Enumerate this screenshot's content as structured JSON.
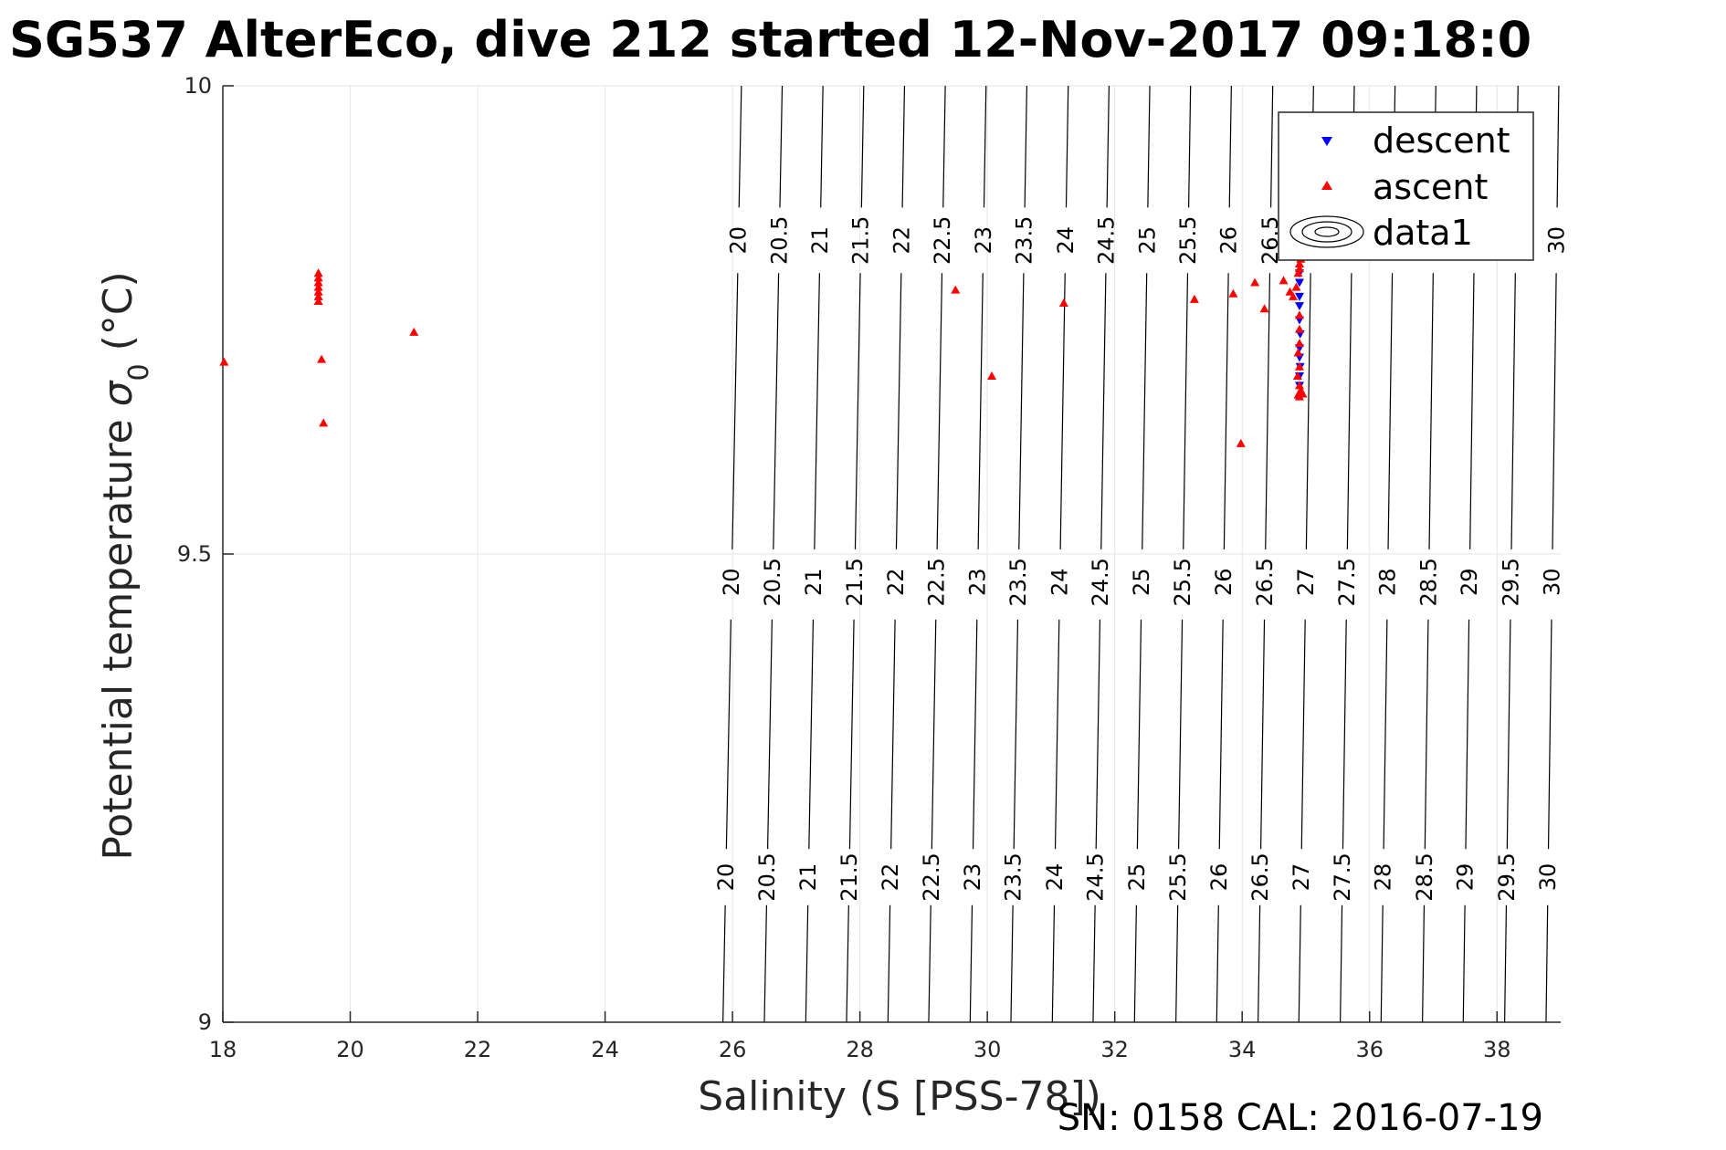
{
  "chart_data": {
    "type": "scatter",
    "title": "SG537 AlterEco, dive 212 started 12-Nov-2017 09:18:0",
    "xlabel": "Salinity (S [PSS-78])",
    "ylabel_main": "Potential temperature ",
    "ylabel_symbol": "σ",
    "ylabel_subscript": "0",
    "ylabel_unit": " (°C)",
    "footer": "SN: 0158  CAL: 2016-07-19",
    "xlim": [
      18,
      39
    ],
    "ylim": [
      9,
      10
    ],
    "xticks": [
      18,
      20,
      22,
      24,
      26,
      28,
      30,
      32,
      34,
      36,
      38
    ],
    "yticks": [
      9,
      9.5,
      10
    ],
    "grid": true,
    "legend": {
      "position": "top-right",
      "entries": [
        "descent",
        "ascent",
        "data1"
      ]
    },
    "colors": {
      "descent": "#0000ff",
      "ascent": "#ff0000",
      "contour": "#000000",
      "grid": "#e6e6e6"
    },
    "contour_levels": [
      "20",
      "20.5",
      "21",
      "21.5",
      "22",
      "22.5",
      "23",
      "23.5",
      "24",
      "24.5",
      "25",
      "25.5",
      "26",
      "26.5",
      "27",
      "27.5",
      "28",
      "28.5",
      "29",
      "29.5",
      "30"
    ],
    "contour_salinity_at_9": [
      25.85,
      26.5,
      27.15,
      27.79,
      28.44,
      29.08,
      29.73,
      30.37,
      31.02,
      31.66,
      32.31,
      32.96,
      33.6,
      34.25,
      34.89,
      35.54,
      36.18,
      36.83,
      37.47,
      38.12,
      38.77
    ],
    "contour_salinity_at_10": [
      26.14,
      26.78,
      27.42,
      28.06,
      28.7,
      29.34,
      29.98,
      30.62,
      31.27,
      31.91,
      32.55,
      33.19,
      33.83,
      34.48,
      35.12,
      35.76,
      36.4,
      37.04,
      37.68,
      38.33,
      38.97
    ],
    "contour_labels_row3_levels": [
      "20",
      "20.5",
      "21",
      "21.5",
      "22",
      "22.5",
      "23",
      "23.5",
      "24",
      "24.5",
      "25",
      "25.5",
      "26",
      "26.5",
      "30"
    ],
    "series": [
      {
        "name": "descent",
        "marker": "triangle-down",
        "points": [
          [
            34.9,
            9.8
          ],
          [
            34.9,
            9.79
          ],
          [
            34.9,
            9.775
          ],
          [
            34.9,
            9.765
          ],
          [
            34.9,
            9.75
          ],
          [
            34.91,
            9.735
          ],
          [
            34.9,
            9.72
          ],
          [
            34.9,
            9.71
          ],
          [
            34.91,
            9.7
          ],
          [
            34.9,
            9.69
          ],
          [
            34.9,
            9.68
          ]
        ]
      },
      {
        "name": "ascent",
        "marker": "triangle-up",
        "points": [
          [
            18.02,
            9.705
          ],
          [
            19.5,
            9.8
          ],
          [
            19.5,
            9.795
          ],
          [
            19.5,
            9.79
          ],
          [
            19.5,
            9.785
          ],
          [
            19.5,
            9.78
          ],
          [
            19.5,
            9.775
          ],
          [
            19.5,
            9.77
          ],
          [
            19.55,
            9.708
          ],
          [
            19.58,
            9.64
          ],
          [
            21.0,
            9.737
          ],
          [
            29.5,
            9.782
          ],
          [
            30.07,
            9.69
          ],
          [
            31.2,
            9.768
          ],
          [
            33.25,
            9.772
          ],
          [
            33.86,
            9.778
          ],
          [
            33.98,
            9.618
          ],
          [
            34.2,
            9.79
          ],
          [
            34.35,
            9.762
          ],
          [
            34.65,
            9.792
          ],
          [
            34.75,
            9.78
          ],
          [
            34.8,
            9.775
          ],
          [
            34.85,
            9.785
          ],
          [
            34.88,
            9.8
          ],
          [
            34.9,
            9.805
          ],
          [
            34.9,
            9.81
          ],
          [
            34.92,
            9.815
          ],
          [
            34.93,
            9.82
          ],
          [
            34.9,
            9.755
          ],
          [
            34.9,
            9.74
          ],
          [
            34.9,
            9.725
          ],
          [
            34.88,
            9.715
          ],
          [
            34.9,
            9.7
          ],
          [
            34.87,
            9.69
          ],
          [
            34.9,
            9.68
          ],
          [
            34.92,
            9.675
          ],
          [
            34.95,
            9.671
          ],
          [
            34.88,
            9.67
          ],
          [
            34.9,
            9.668
          ]
        ]
      }
    ]
  }
}
